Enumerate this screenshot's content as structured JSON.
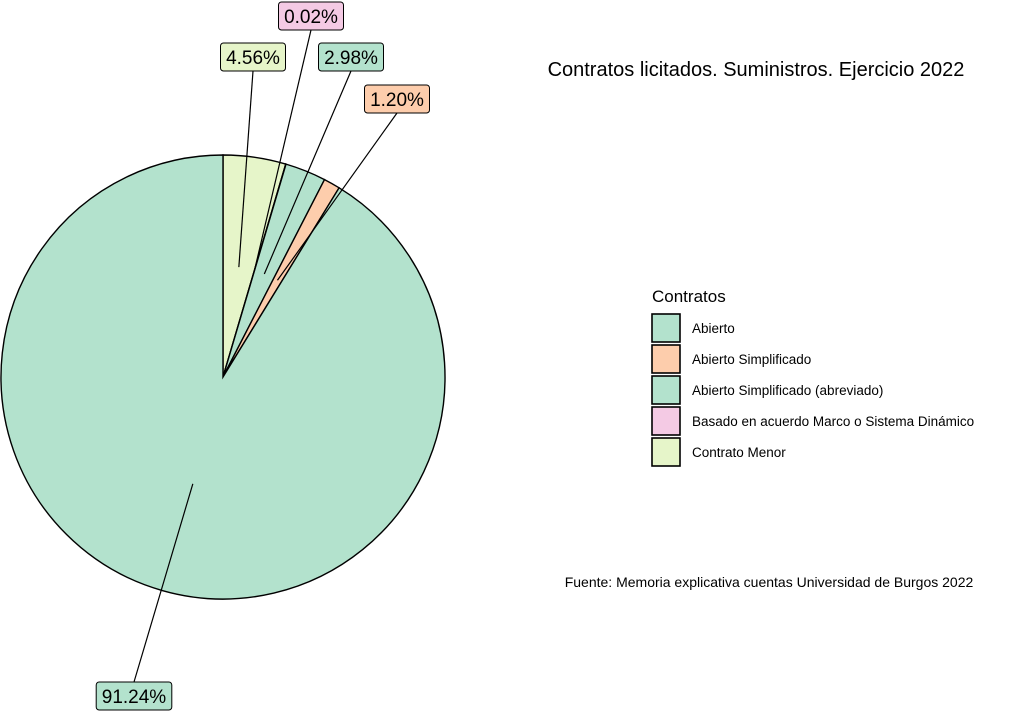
{
  "chart_data": {
    "type": "pie",
    "title": "Contratos licitados. Suministros. Ejercicio 2022",
    "caption": "Fuente: Memoria explicativa cuentas Universidad de Burgos 2022",
    "legend_title": "Contratos",
    "legend_position": "right",
    "slices": [
      {
        "name": "Contrato Menor",
        "value": 4.56,
        "label": "4.56%",
        "color": "#E6F5C9"
      },
      {
        "name": "Basado en acuerdo Marco o Sistema Dinámico",
        "value": 0.02,
        "label": "0.02%",
        "color": "#F4CAE4"
      },
      {
        "name": "Abierto Simplificado (abreviado)",
        "value": 2.98,
        "label": "2.98%",
        "color": "#B3E2CD"
      },
      {
        "name": "Abierto Simplificado",
        "value": 1.2,
        "label": "1.20%",
        "color": "#FDCDAC"
      },
      {
        "name": "Abierto",
        "value": 91.24,
        "label": "91.24%",
        "color": "#B3E2CD"
      }
    ],
    "legend": [
      {
        "label": "Abierto",
        "color": "#B3E2CD"
      },
      {
        "label": "Abierto Simplificado",
        "color": "#FDCDAC"
      },
      {
        "label": "Abierto Simplificado (abreviado)",
        "color": "#B3E2CD"
      },
      {
        "label": "Basado en acuerdo Marco o Sistema Dinámico",
        "color": "#F4CAE4"
      },
      {
        "label": "Contrato Menor",
        "color": "#E6F5C9"
      }
    ]
  }
}
